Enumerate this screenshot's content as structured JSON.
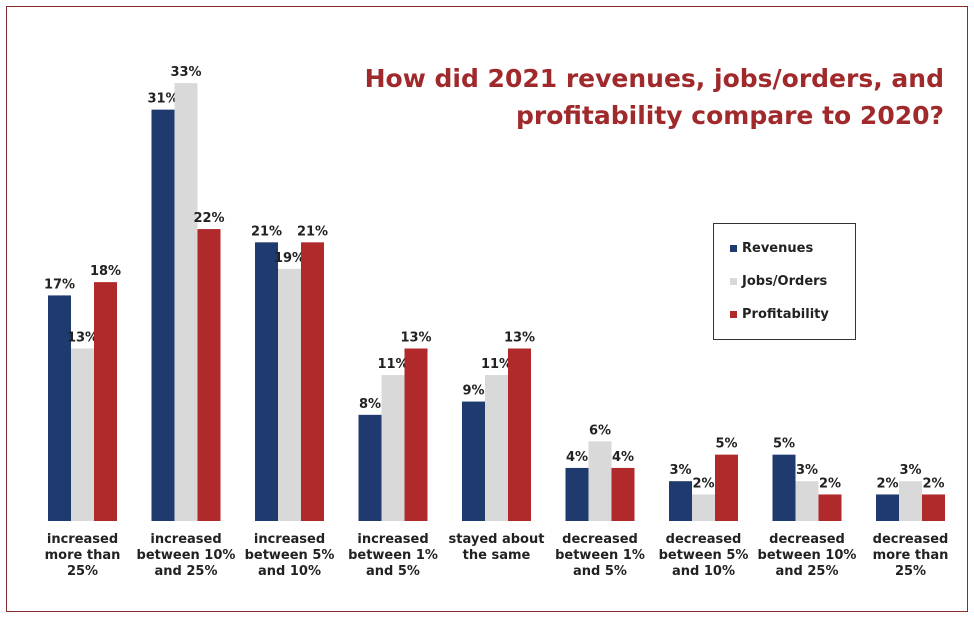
{
  "chart_data": {
    "type": "bar",
    "title_lines": [
      "How did 2021 revenues, jobs/orders, and",
      "profitability compare to 2020?"
    ],
    "xlabel": "",
    "ylabel": "",
    "ylim": [
      0,
      35
    ],
    "grid": false,
    "legend_position": "right",
    "value_suffix": "%",
    "categories": [
      [
        "increased",
        "more than",
        "25%"
      ],
      [
        "increased",
        "between 10%",
        "and 25%"
      ],
      [
        "increased",
        "between 5%",
        "and 10%"
      ],
      [
        "increased",
        "between 1%",
        "and 5%"
      ],
      [
        "stayed about",
        "the same"
      ],
      [
        "decreased",
        "between 1%",
        "and 5%"
      ],
      [
        "decreased",
        "between 5%",
        "and 10%"
      ],
      [
        "decreased",
        "between 10%",
        "and 25%"
      ],
      [
        "decreased",
        "more than",
        "25%"
      ]
    ],
    "series": [
      {
        "name": "Revenues",
        "color": "#1f3a6e",
        "values": [
          17,
          31,
          21,
          8,
          9,
          4,
          3,
          5,
          2
        ]
      },
      {
        "name": "Jobs/Orders",
        "color": "#d9d9d9",
        "values": [
          13,
          33,
          19,
          11,
          11,
          6,
          2,
          3,
          3
        ]
      },
      {
        "name": "Profitability",
        "color": "#b0292b",
        "values": [
          18,
          22,
          21,
          13,
          13,
          4,
          5,
          2,
          2
        ]
      }
    ]
  }
}
